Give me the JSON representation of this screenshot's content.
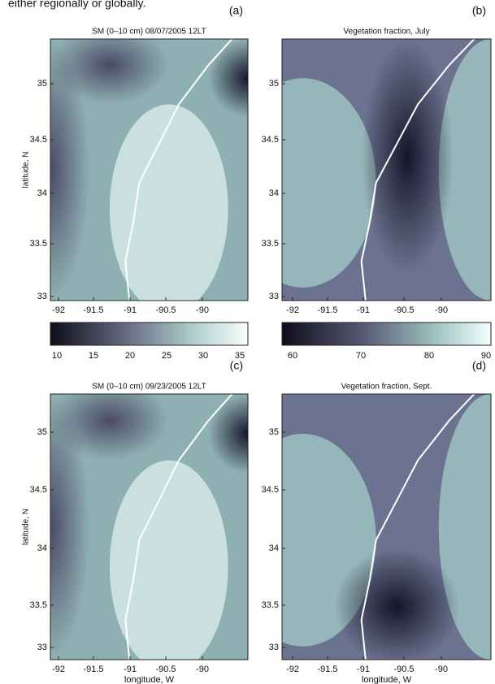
{
  "header_text": "either regionally or globally.",
  "panels": [
    {
      "label": "(a)",
      "title": "SM (0–10 cm) 08/07/2005 12LT",
      "y_axis_label": "latitude, N",
      "y_ticks": [
        "35",
        "34.5",
        "34",
        "33.5",
        "33"
      ],
      "x_ticks": [
        "-92",
        "-91.5",
        "-91",
        "-90.5",
        "-90"
      ],
      "colorbar_ticks": [
        "10",
        "15",
        "20",
        "25",
        "30",
        "35"
      ]
    },
    {
      "label": "(b)",
      "title": "Vegetation fraction, July",
      "y_ticks": [
        "35",
        "34.5",
        "34",
        "33.5",
        "33"
      ],
      "x_ticks": [
        "-92",
        "-91.5",
        "-91",
        "-90.5",
        "-90"
      ],
      "colorbar_ticks": [
        "60",
        "70",
        "80",
        "90"
      ]
    },
    {
      "label": "(c)",
      "title": "SM (0–10 cm) 09/23/2005 12LT",
      "y_axis_label": "latitude, N",
      "y_ticks": [
        "35",
        "34.5",
        "34",
        "33.5",
        "33"
      ],
      "x_ticks": [
        "-92",
        "-91.5",
        "-91",
        "-90.5",
        "-90"
      ],
      "x_axis_label": "longitude, W"
    },
    {
      "label": "(d)",
      "title": "Vegetation fraction, Sept.",
      "y_ticks": [
        "35",
        "34.5",
        "34",
        "33.5",
        "33"
      ],
      "x_ticks": [
        "-92",
        "-91.5",
        "-91",
        "-90.5",
        "-90"
      ],
      "x_axis_label": "longitude, W"
    }
  ]
}
